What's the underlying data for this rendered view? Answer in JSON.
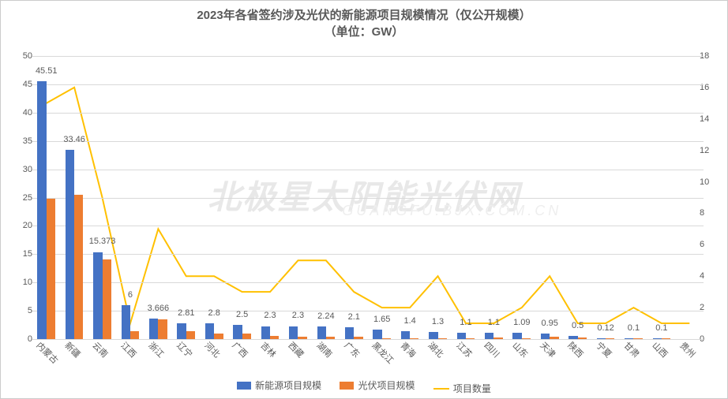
{
  "chart": {
    "type": "bar+line",
    "title_line1": "2023年各省签约涉及光伏的新能源项目规模情况（仅公开规模）",
    "title_line2": "（单位：GW）",
    "title_fontsize": 15,
    "title_color": "#595959",
    "background_color": "#ffffff",
    "grid_color": "#d9d9d9",
    "text_color": "#595959",
    "label_fontsize": 11,
    "y_left": {
      "min": 0,
      "max": 50,
      "step": 5
    },
    "y_right": {
      "min": 0,
      "max": 18,
      "step": 2
    },
    "categories": [
      "内蒙古",
      "新疆",
      "云南",
      "江西",
      "浙江",
      "辽宁",
      "河北",
      "广西",
      "吉林",
      "西藏",
      "湖南",
      "广东",
      "黑龙江",
      "青海",
      "湖北",
      "江苏",
      "四川",
      "山东",
      "天津",
      "陕西",
      "宁夏",
      "甘肃",
      "山西",
      "贵州"
    ],
    "series": {
      "new_energy": {
        "label": "新能源项目规模",
        "color": "#4472c4",
        "bar_width_frac": 0.32,
        "data_labels": [
          "45.51",
          "33.46",
          "15.373",
          "6",
          "3.666",
          "2.81",
          "2.8",
          "2.5",
          "2.3",
          "2.3",
          "2.24",
          "2.1",
          "1.65",
          "1.4",
          "1.3",
          "1.1",
          "1.1",
          "1.09",
          "0.95",
          "0.5",
          "0.12",
          "0.1",
          "0.1",
          ""
        ],
        "values": [
          45.51,
          33.46,
          15.373,
          6,
          3.666,
          2.81,
          2.8,
          2.5,
          2.3,
          2.3,
          2.24,
          2.1,
          1.65,
          1.4,
          1.3,
          1.1,
          1.1,
          1.09,
          0.95,
          0.5,
          0.12,
          0.1,
          0.1,
          0
        ]
      },
      "pv": {
        "label": "光伏项目规模",
        "color": "#ed7d31",
        "bar_width_frac": 0.32,
        "values": [
          24.8,
          25.5,
          14.0,
          1.4,
          3.5,
          1.4,
          1.0,
          1.0,
          0.5,
          0.4,
          0.4,
          0.4,
          0.2,
          0.2,
          0.2,
          0.2,
          0.3,
          0.2,
          0.4,
          0.25,
          0.12,
          0.1,
          0.1,
          0
        ]
      },
      "count": {
        "label": "项目数量",
        "color": "#ffc000",
        "line_width": 2,
        "values": [
          15,
          16,
          9,
          1,
          7,
          4,
          4,
          3,
          3,
          5,
          5,
          3,
          2,
          2,
          4,
          1,
          1,
          2,
          4,
          1,
          1,
          2,
          1,
          1
        ]
      }
    },
    "watermark_main": "北极星太阳能光伏网",
    "watermark_sub": "GUANGFU.BJX.COM.CN"
  }
}
